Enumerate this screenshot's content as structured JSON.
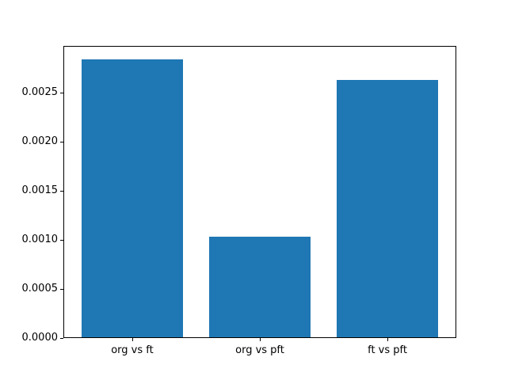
{
  "figure": {
    "background_color": "#ffffff",
    "frame_color": "#000000",
    "text_color": "#000000"
  },
  "chart_data": {
    "type": "bar",
    "title": "",
    "xlabel": "",
    "ylabel": "",
    "categories": [
      "org vs ft",
      "org vs pft",
      "ft vs pft"
    ],
    "values": [
      0.00284,
      0.00103,
      0.00263
    ],
    "bar_color": "#1f77b4",
    "bar_width": 0.8,
    "x_positions": [
      0,
      1,
      2
    ],
    "xlim": [
      -0.54,
      2.54
    ],
    "ylim": [
      0,
      0.002978
    ],
    "yticks": [
      {
        "value": 0.0,
        "label": "0.0000"
      },
      {
        "value": 0.0005,
        "label": "0.0005"
      },
      {
        "value": 0.001,
        "label": "0.0010"
      },
      {
        "value": 0.0015,
        "label": "0.0015"
      },
      {
        "value": 0.002,
        "label": "0.0020"
      },
      {
        "value": 0.0025,
        "label": "0.0025"
      }
    ],
    "grid": false,
    "legend": null
  }
}
